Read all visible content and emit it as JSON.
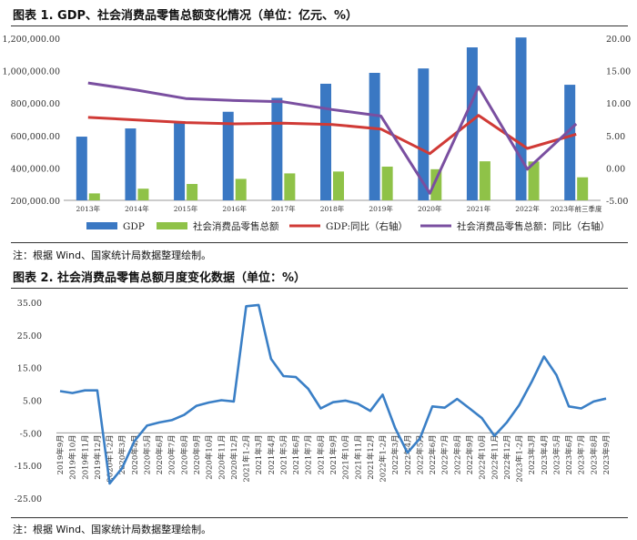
{
  "fig1": {
    "title": "图表 1.   GDP、社会消费品零售总额变化情况（单位：亿元、%）",
    "note": "注：根据 Wind、国家统计局数据整理绘制。"
  },
  "fig2": {
    "title": "图表 2.   社会消费品零售总额月度变化数据（单位：%）",
    "note": "注：根据 Wind、国家统计局数据整理绘制。"
  },
  "colors": {
    "gdp_bar": "#3a78c3",
    "retail_bar": "#8fc248",
    "gdp_yoy": "#d03a36",
    "retail_yoy": "#7a4fa0",
    "monthly": "#3a7fc6"
  },
  "chart_data": [
    {
      "type": "bar",
      "categories": [
        "2013年",
        "2014年",
        "2015年",
        "2016年",
        "2017年",
        "2018年",
        "2019年",
        "2020年",
        "2021年",
        "2022年",
        "2023年前三季度"
      ],
      "series": [
        {
          "name": "GDP",
          "axis": "left",
          "kind": "bar",
          "values": [
            592963,
            643563,
            688858,
            746395,
            832036,
            919281,
            986515,
            1013567,
            1143670,
            1204724,
            913027
          ]
        },
        {
          "name": "社会消费品零售总额",
          "axis": "left",
          "kind": "bar",
          "values": [
            242843,
            271896,
            300931,
            332316,
            366262,
            377783,
            408017,
            391981,
            440823,
            439733,
            342107
          ]
        },
        {
          "name": "GDP:同比（右轴）",
          "axis": "right",
          "kind": "line",
          "values": [
            7.8,
            7.4,
            7.0,
            6.8,
            6.9,
            6.7,
            6.0,
            2.2,
            8.1,
            3.0,
            5.2
          ]
        },
        {
          "name": "社会消费品零售总额：同比（右轴）",
          "axis": "right",
          "kind": "line",
          "values": [
            13.1,
            12.0,
            10.7,
            10.4,
            10.2,
            9.0,
            8.0,
            -3.9,
            12.5,
            -0.2,
            6.8
          ]
        }
      ],
      "y_left": {
        "ticks": [
          "1,200,000.00",
          "1,000,000.00",
          "800,000.00",
          "600,000.00",
          "400,000.00",
          "200,000.00"
        ],
        "range": [
          200000,
          1200000
        ]
      },
      "y_right": {
        "ticks": [
          "20.00",
          "15.00",
          "10.00",
          "5.00",
          "0.00",
          "-5.00"
        ],
        "range": [
          -5,
          20
        ]
      },
      "legend_position": "bottom",
      "grid": false
    },
    {
      "type": "line",
      "x": [
        "2019年9月",
        "2019年10月",
        "2019年11月",
        "2019年12月",
        "2020年1-2月",
        "2020年3月",
        "2020年4月",
        "2020年5月",
        "2020年6月",
        "2020年7月",
        "2020年8月",
        "2020年9月",
        "2020年10月",
        "2020年11月",
        "2020年12月",
        "2021年1-2月",
        "2021年3月",
        "2021年4月",
        "2021年5月",
        "2021年6月",
        "2021年7月",
        "2021年8月",
        "2021年9月",
        "2021年10月",
        "2021年11月",
        "2021年12月",
        "2022年1-2月",
        "2022年3月",
        "2022年4月",
        "2022年5月",
        "2022年6月",
        "2022年7月",
        "2022年8月",
        "2022年9月",
        "2022年10月",
        "2022年11月",
        "2022年12月",
        "2023年1-2月",
        "2023年3月",
        "2023年4月",
        "2023年5月",
        "2023年6月",
        "2023年7月",
        "2023年8月",
        "2023年9月"
      ],
      "series": [
        {
          "name": "",
          "values": [
            7.8,
            7.2,
            8.0,
            8.0,
            -20.5,
            -15.8,
            -7.5,
            -2.8,
            -1.8,
            -1.1,
            0.5,
            3.3,
            4.3,
            5.0,
            4.6,
            33.8,
            34.2,
            17.7,
            12.4,
            12.1,
            8.5,
            2.5,
            4.4,
            4.9,
            3.9,
            1.7,
            6.7,
            -3.5,
            -11.1,
            -6.7,
            3.1,
            2.7,
            5.4,
            2.5,
            -0.5,
            -5.9,
            -1.8,
            3.5,
            10.6,
            18.4,
            12.7,
            3.1,
            2.5,
            4.6,
            5.5
          ]
        }
      ],
      "y": {
        "ticks": [
          "35.00",
          "25.00",
          "15.00",
          "5.00",
          "-5.00",
          "-15.00",
          "-25.00"
        ],
        "range": [
          -25,
          35
        ]
      },
      "grid": false
    }
  ]
}
